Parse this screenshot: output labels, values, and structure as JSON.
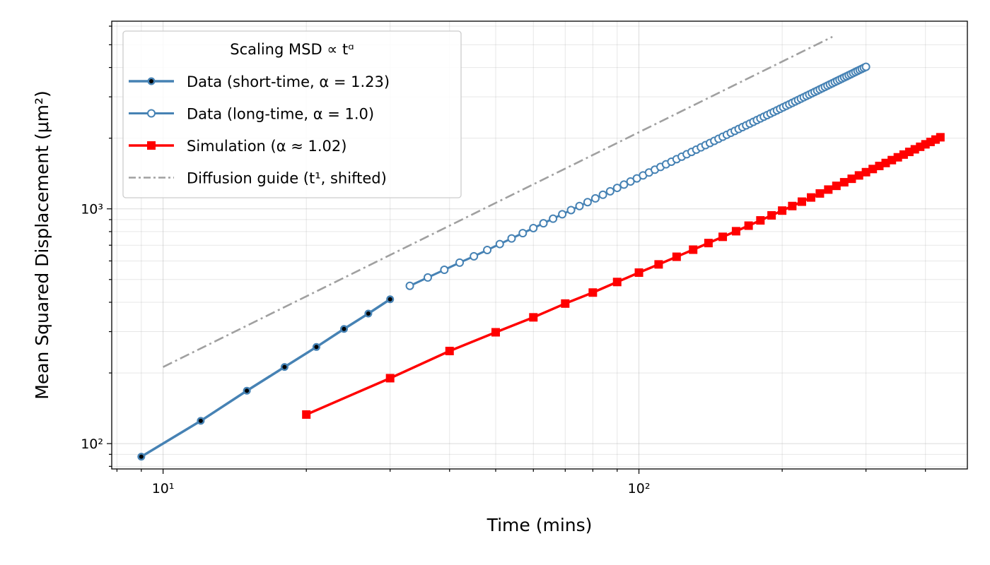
{
  "chart_data": {
    "type": "line",
    "x_scale": "log",
    "y_scale": "log",
    "xlim": [
      7.8,
      490
    ],
    "ylim": [
      78,
      6300
    ],
    "grid": true,
    "xlabel": "Time (mins)",
    "ylabel": "Mean Squared Displacement (μm²)",
    "x_ticks": [
      10,
      100
    ],
    "x_tick_labels": [
      "10¹",
      "10²"
    ],
    "y_ticks": [
      100,
      1000
    ],
    "y_tick_labels": [
      "10²",
      "10³"
    ],
    "legend": {
      "title": "Scaling MSD ∝ tᵅ",
      "position": "upper-left",
      "entries": [
        "Data (short-time, α = 1.23)",
        "Data (long-time, α = 1.0)",
        "Simulation (α ≈ 1.02)",
        "Diffusion guide (t¹, shifted)"
      ]
    },
    "series": [
      {
        "name": "Data (short-time, α = 1.23)",
        "color": "#4682b4",
        "marker": "circle-filled-black",
        "x": [
          9,
          12,
          15,
          18,
          21,
          24,
          27,
          30
        ],
        "y": [
          88,
          125,
          168,
          212,
          258,
          308,
          358,
          412
        ]
      },
      {
        "name": "Data (long-time, α = 1.0)",
        "color": "#4682b4",
        "marker": "circle-open",
        "x": [
          33,
          36,
          39,
          42,
          45,
          48,
          51,
          54,
          57,
          60,
          63,
          66,
          69,
          72,
          75,
          78,
          81,
          84,
          87,
          90,
          93,
          96,
          99,
          102,
          105,
          108,
          111,
          114,
          117,
          120,
          123,
          126,
          129,
          132,
          135,
          138,
          141,
          144,
          147,
          150,
          153,
          156,
          159,
          162,
          165,
          168,
          171,
          174,
          177,
          180,
          183,
          186,
          189,
          192,
          195,
          198,
          201,
          204,
          207,
          210,
          213,
          216,
          219,
          222,
          225,
          228,
          231,
          234,
          237,
          240,
          243,
          246,
          249,
          252,
          255,
          258,
          261,
          264,
          267,
          270,
          273,
          276,
          279,
          282,
          285,
          288,
          291,
          294,
          297,
          300
        ],
        "y": [
          470,
          510,
          550,
          590,
          628,
          668,
          708,
          748,
          788,
          828,
          868,
          908,
          948,
          988,
          1028,
          1068,
          1108,
          1148,
          1188,
          1228,
          1268,
          1308,
          1348,
          1388,
          1428,
          1468,
          1508,
          1548,
          1588,
          1628,
          1668,
          1708,
          1748,
          1788,
          1828,
          1868,
          1908,
          1948,
          1988,
          2028,
          2068,
          2108,
          2148,
          2188,
          2228,
          2268,
          2308,
          2348,
          2388,
          2428,
          2468,
          2508,
          2548,
          2588,
          2628,
          2668,
          2708,
          2748,
          2788,
          2828,
          2868,
          2908,
          2948,
          2988,
          3028,
          3068,
          3108,
          3148,
          3188,
          3228,
          3268,
          3308,
          3348,
          3388,
          3428,
          3468,
          3508,
          3548,
          3588,
          3628,
          3668,
          3708,
          3748,
          3788,
          3828,
          3868,
          3908,
          3948,
          3988,
          4028
        ]
      },
      {
        "name": "Simulation (α ≈ 1.02)",
        "color": "#ff0000",
        "marker": "square",
        "x": [
          20,
          30,
          40,
          50,
          60,
          70,
          80,
          90,
          100,
          110,
          120,
          130,
          140,
          150,
          160,
          170,
          180,
          190,
          200,
          210,
          220,
          230,
          240,
          250,
          260,
          270,
          280,
          290,
          300,
          310,
          320,
          330,
          340,
          350,
          360,
          370,
          380,
          390,
          400,
          410,
          420,
          430
        ],
        "y": [
          133,
          190,
          248,
          298,
          345,
          395,
          440,
          488,
          535,
          580,
          625,
          670,
          715,
          760,
          803,
          848,
          893,
          938,
          983,
          1028,
          1073,
          1118,
          1163,
          1208,
          1253,
          1298,
          1343,
          1388,
          1433,
          1478,
          1523,
          1568,
          1613,
          1658,
          1703,
          1748,
          1793,
          1838,
          1883,
          1928,
          1973,
          2018
        ]
      },
      {
        "name": "Diffusion guide (t¹, shifted)",
        "color": "#a0a0a0",
        "marker": "none",
        "linestyle": "dashdot",
        "x": [
          10,
          255
        ],
        "y": [
          212,
          5406
        ]
      }
    ]
  }
}
